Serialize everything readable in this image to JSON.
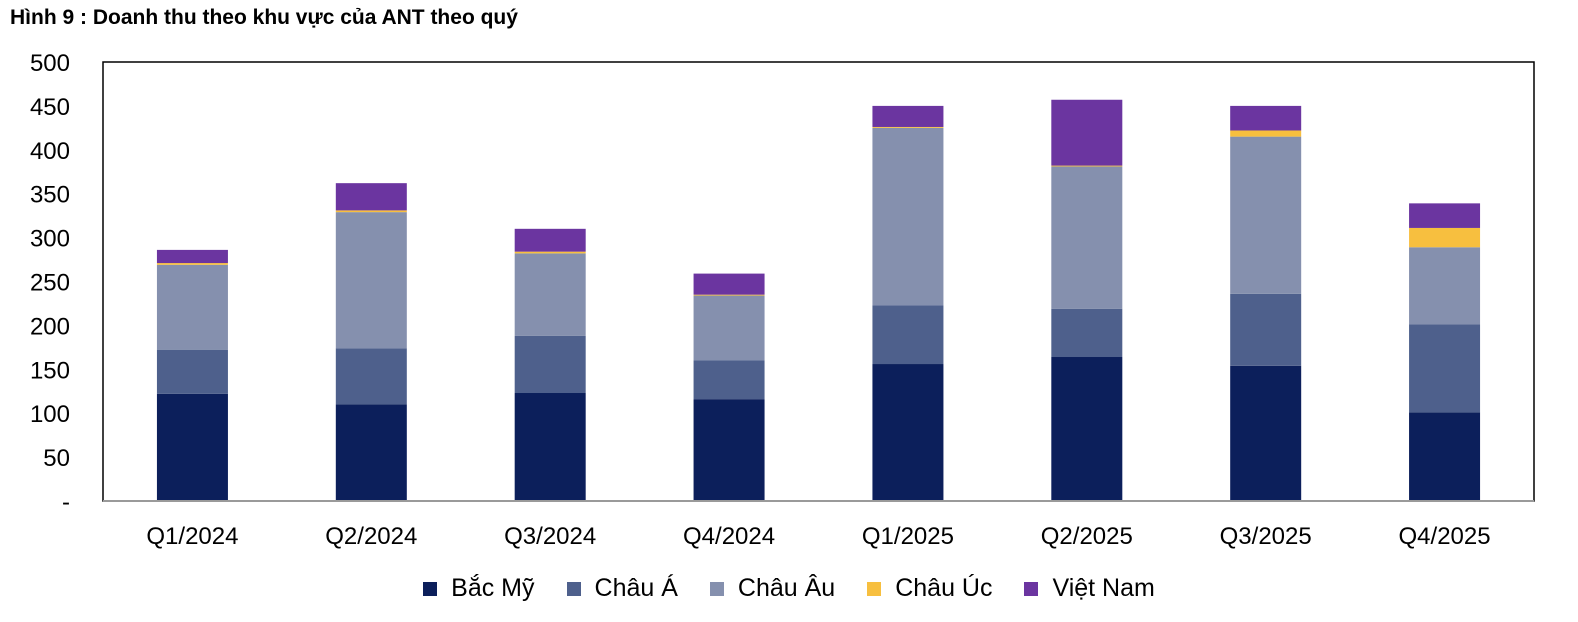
{
  "figure_title": "Hình 9 : Doanh thu theo khu vực của ANT theo quý",
  "chart_data": {
    "type": "bar",
    "stacked": true,
    "title": "Hình 9 : Doanh thu theo khu vực của ANT theo quý",
    "xlabel": "",
    "ylabel": "",
    "ylim": [
      0,
      500
    ],
    "yticks": [
      0,
      50,
      100,
      150,
      200,
      250,
      300,
      350,
      400,
      450,
      500
    ],
    "ytick_labels": [
      "-",
      "50",
      "100",
      "150",
      "200",
      "250",
      "300",
      "350",
      "400",
      "450",
      "500"
    ],
    "categories": [
      "Q1/2024",
      "Q2/2024",
      "Q3/2024",
      "Q4/2024",
      "Q1/2025",
      "Q2/2025",
      "Q3/2025",
      "Q4/2025"
    ],
    "series": [
      {
        "name": "Bắc Mỹ",
        "color": "#0c1f5b",
        "values": [
          122,
          110,
          123,
          116,
          156,
          164,
          154,
          101
        ]
      },
      {
        "name": "Châu Á",
        "color": "#4e608c",
        "values": [
          50,
          64,
          65,
          44,
          67,
          55,
          82,
          100
        ]
      },
      {
        "name": "Châu Âu",
        "color": "#8590ae",
        "values": [
          97,
          155,
          94,
          74,
          202,
          162,
          179,
          88
        ]
      },
      {
        "name": "Châu Úc",
        "color": "#f7bf3f",
        "values": [
          2,
          2,
          2,
          1,
          1,
          1,
          7,
          22
        ]
      },
      {
        "name": "Việt Nam",
        "color": "#6b35a0",
        "values": [
          15,
          31,
          26,
          24,
          24,
          75,
          28,
          28
        ]
      }
    ],
    "legend_position": "bottom",
    "grid": false
  }
}
